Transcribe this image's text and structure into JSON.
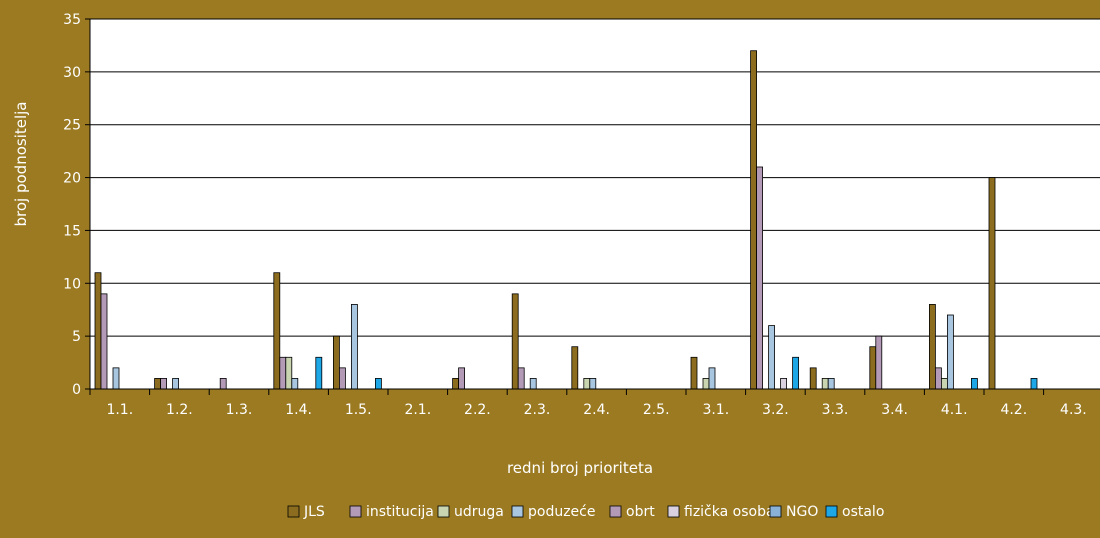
{
  "chart_data": {
    "type": "bar",
    "title": "",
    "xlabel": "redni broj prioriteta",
    "ylabel": "broj podnositelja",
    "ylim": [
      0,
      35
    ],
    "yticks": [
      0,
      5,
      10,
      15,
      20,
      25,
      30,
      35
    ],
    "grid": true,
    "legend_position": "bottom",
    "categories": [
      "1.1.",
      "1.2.",
      "1.3.",
      "1.4.",
      "1.5.",
      "2.1.",
      "2.2.",
      "2.3.",
      "2.4.",
      "2.5.",
      "3.1.",
      "3.2.",
      "3.3.",
      "3.4.",
      "4.1.",
      "4.2.",
      "4.3."
    ],
    "series": [
      {
        "name": "JLS",
        "color": "#8c6d1f",
        "values": [
          11,
          1,
          0,
          11,
          5,
          0,
          1,
          9,
          4,
          0,
          3,
          32,
          2,
          4,
          8,
          20,
          0
        ]
      },
      {
        "name": "institucija",
        "color": "#b39ab7",
        "values": [
          9,
          1,
          1,
          3,
          2,
          0,
          2,
          2,
          0,
          0,
          0,
          21,
          0,
          5,
          2,
          0,
          0
        ]
      },
      {
        "name": "udruga",
        "color": "#c9d4b1",
        "values": [
          0,
          0,
          0,
          3,
          0,
          0,
          0,
          0,
          1,
          0,
          1,
          0,
          1,
          0,
          1,
          0,
          0
        ]
      },
      {
        "name": "poduzeće",
        "color": "#a8c6e0",
        "values": [
          2,
          1,
          0,
          1,
          8,
          0,
          0,
          1,
          1,
          0,
          2,
          6,
          1,
          0,
          7,
          0,
          0
        ]
      },
      {
        "name": "obrt",
        "color": "#b39ab7",
        "values": [
          0,
          0,
          0,
          0,
          0,
          0,
          0,
          0,
          0,
          0,
          0,
          0,
          0,
          0,
          0,
          0,
          0
        ]
      },
      {
        "name": "fizička osoba",
        "color": "#d9d1e0",
        "values": [
          0,
          0,
          0,
          0,
          0,
          0,
          0,
          0,
          0,
          0,
          0,
          1,
          0,
          0,
          0,
          0,
          0
        ]
      },
      {
        "name": "NGO",
        "color": "#89b2d6",
        "values": [
          0,
          0,
          0,
          0,
          0,
          0,
          0,
          0,
          0,
          0,
          0,
          0,
          0,
          0,
          0,
          0,
          0
        ]
      },
      {
        "name": "ostalo",
        "color": "#1ea7e6",
        "values": [
          0,
          0,
          0,
          3,
          1,
          0,
          0,
          0,
          0,
          0,
          0,
          3,
          0,
          0,
          1,
          1,
          0
        ]
      }
    ]
  }
}
